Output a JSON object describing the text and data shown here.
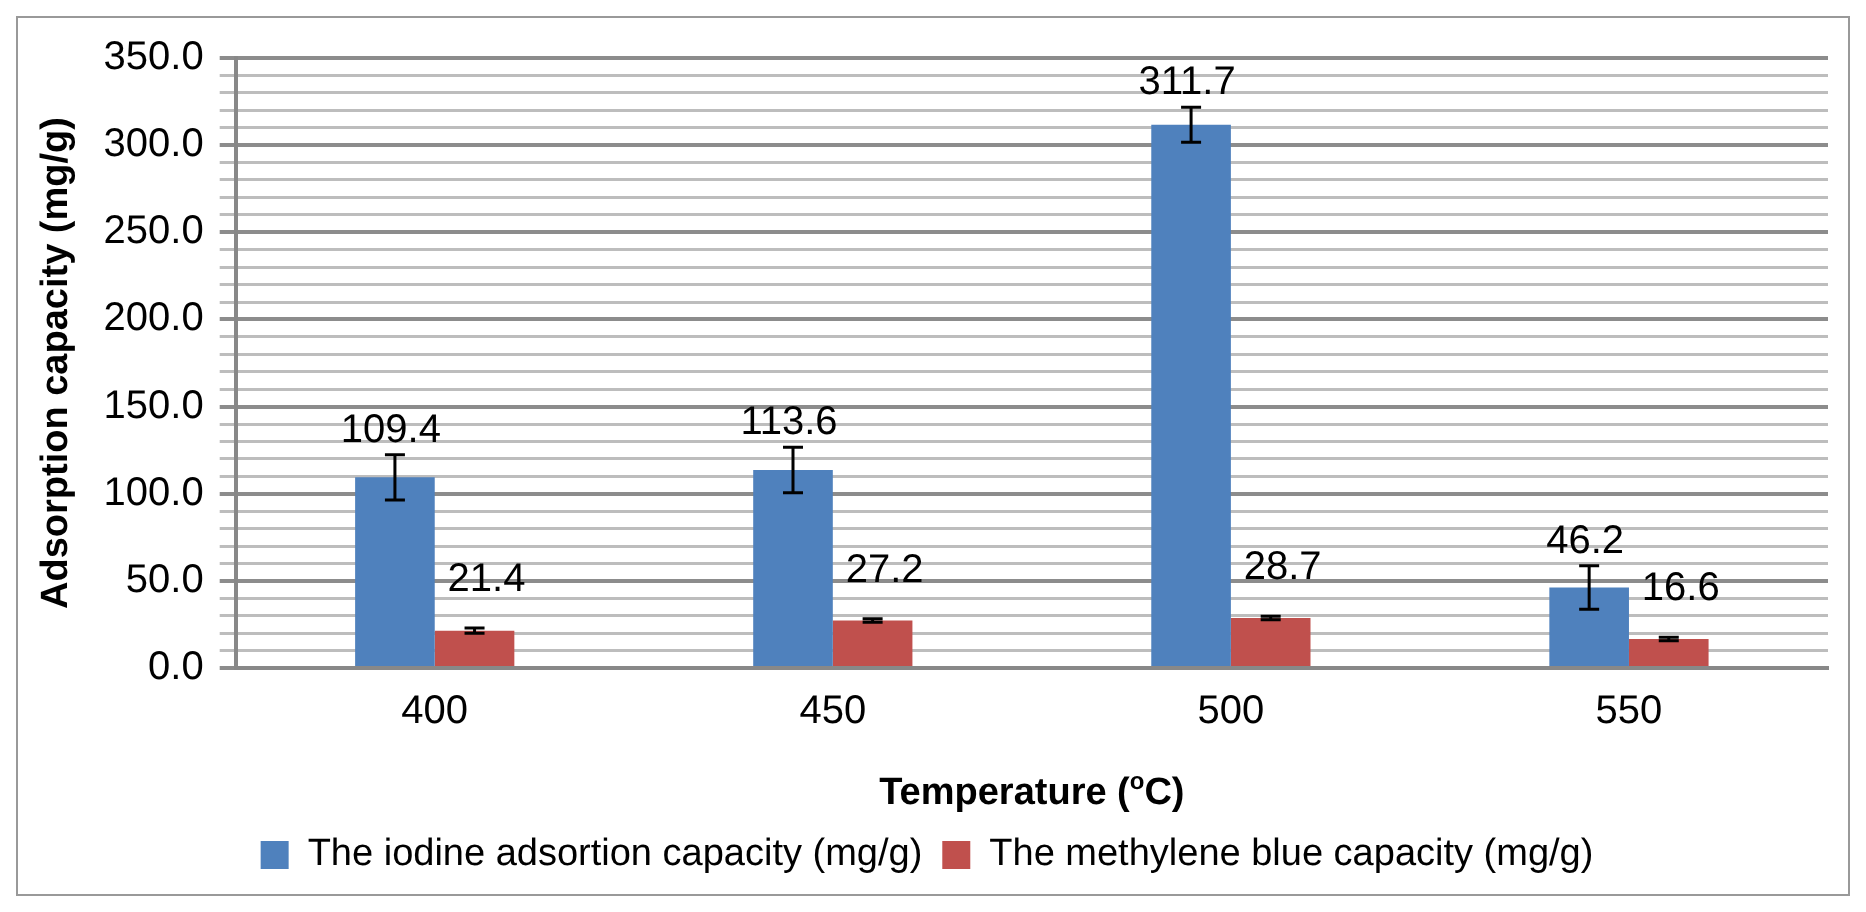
{
  "chart_data": {
    "type": "bar",
    "xlabel": "Temperature ($^{o}$C)",
    "ylabel": "Adsorption capacity (mg/g)",
    "categories": [
      "400",
      "450",
      "500",
      "550"
    ],
    "series": [
      {
        "name": "The iodine adsortion capacity (mg/g)",
        "color": "#4f81bd",
        "values": [
          109.4,
          113.6,
          311.7,
          46.2
        ],
        "errors": [
          13,
          13,
          10,
          12.5
        ]
      },
      {
        "name": "The methylene blue capacity (mg/g)",
        "color": "#c0504d",
        "values": [
          21.4,
          27.2,
          28.7,
          16.6
        ],
        "errors": [
          1.5,
          1,
          1,
          1
        ]
      }
    ],
    "ylim": [
      0,
      350
    ],
    "yticks": [
      {
        "value": 0,
        "label": "0.0"
      },
      {
        "value": 10,
        "label": null
      },
      {
        "value": 20,
        "label": null
      },
      {
        "value": 30,
        "label": null
      },
      {
        "value": 40,
        "label": null
      },
      {
        "value": 50,
        "label": "50.0"
      },
      {
        "value": 60,
        "label": null
      },
      {
        "value": 70,
        "label": null
      },
      {
        "value": 80,
        "label": null
      },
      {
        "value": 90,
        "label": null
      },
      {
        "value": 100,
        "label": "100.0"
      },
      {
        "value": 110,
        "label": null
      },
      {
        "value": 120,
        "label": null
      },
      {
        "value": 130,
        "label": null
      },
      {
        "value": 140,
        "label": null
      },
      {
        "value": 150,
        "label": "150.0"
      },
      {
        "value": 160,
        "label": null
      },
      {
        "value": 170,
        "label": null
      },
      {
        "value": 180,
        "label": null
      },
      {
        "value": 190,
        "label": null
      },
      {
        "value": 200,
        "label": "200.0"
      },
      {
        "value": 210,
        "label": null
      },
      {
        "value": 220,
        "label": null
      },
      {
        "value": 230,
        "label": null
      },
      {
        "value": 240,
        "label": null
      },
      {
        "value": 250,
        "label": "250.0"
      },
      {
        "value": 260,
        "label": null
      },
      {
        "value": 270,
        "label": null
      },
      {
        "value": 280,
        "label": null
      },
      {
        "value": 290,
        "label": null
      },
      {
        "value": 300,
        "label": "300.0"
      },
      {
        "value": 310,
        "label": null
      },
      {
        "value": 320,
        "label": null
      },
      {
        "value": 330,
        "label": null
      },
      {
        "value": 340,
        "label": null
      },
      {
        "value": 350,
        "label": "350.0"
      }
    ],
    "grid": "y",
    "legend": "bottom",
    "data_labels": true
  }
}
